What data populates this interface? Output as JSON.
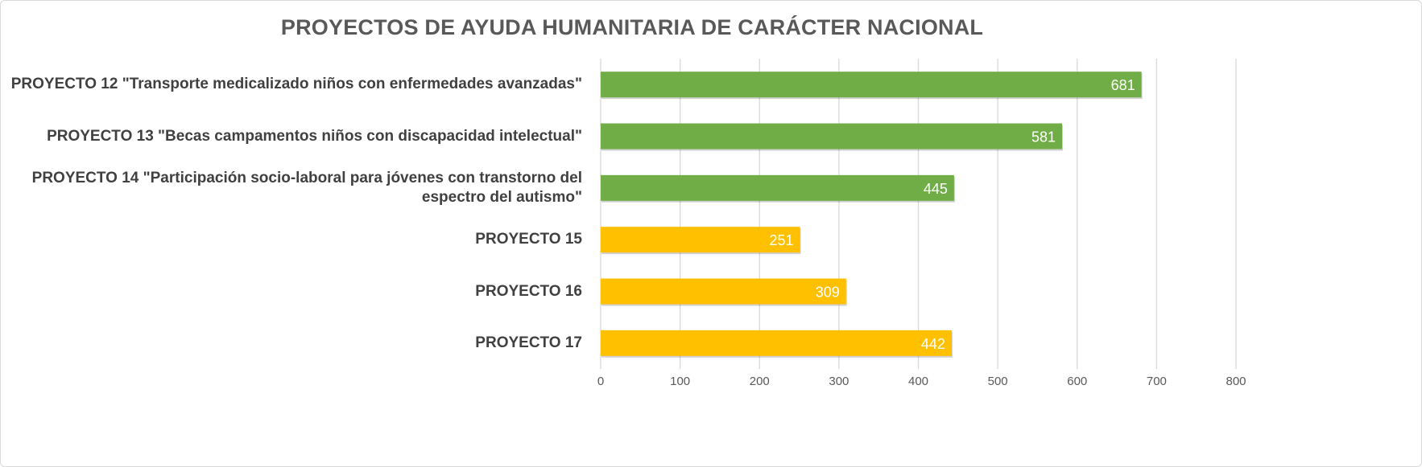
{
  "chart_data": {
    "type": "bar",
    "orientation": "horizontal",
    "title": "PROYECTOS DE AYUDA HUMANITARIA DE CARÁCTER NACIONAL",
    "categories": [
      "PROYECTO 12 \"Transporte medicalizado niños con enfermedades avanzadas\"",
      "PROYECTO 13 \"Becas campamentos niños con discapacidad intelectual\"",
      "PROYECTO 14 \"Participación socio-laboral para jóvenes con transtorno del espectro del autismo\"",
      "PROYECTO 15",
      "PROYECTO 16",
      "PROYECTO 17"
    ],
    "values": [
      681,
      581,
      445,
      251,
      309,
      442
    ],
    "value_labels": [
      "681",
      "581",
      "445",
      "251",
      "309",
      "442"
    ],
    "colors": [
      "#70AD47",
      "#70AD47",
      "#70AD47",
      "#FFC000",
      "#FFC000",
      "#FFC000"
    ],
    "xlim": [
      0,
      800
    ],
    "xticks": [
      0,
      100,
      200,
      300,
      400,
      500,
      600,
      700,
      800
    ],
    "xtick_labels": [
      "0",
      "100",
      "200",
      "300",
      "400",
      "500",
      "600",
      "700",
      "800"
    ],
    "grid": true,
    "xlabel": "",
    "ylabel": ""
  }
}
